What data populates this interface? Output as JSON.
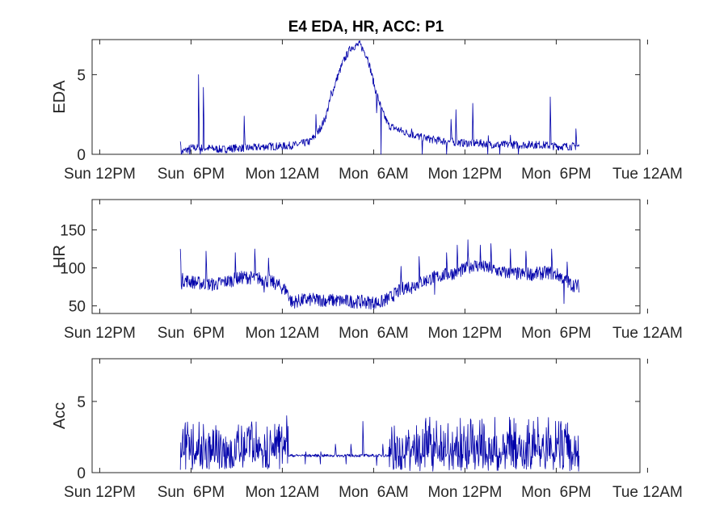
{
  "chart_data": {
    "type": "line",
    "title": "E4 EDA, HR, ACC: P1",
    "line_color": "#0000aa",
    "x_ticks": [
      "Sun 12PM",
      "Sun  6PM",
      "Mon 12AM",
      "Mon  6AM",
      "Mon 12PM",
      "Mon  6PM",
      "Tue 12AM"
    ],
    "x_tick_hours": [
      0,
      6,
      12,
      18,
      24,
      30,
      36
    ],
    "x_unit": "hours since Sun 12PM",
    "xlim": [
      -0.5,
      35.5
    ],
    "panels": [
      {
        "ylabel": "EDA",
        "ylim": [
          0,
          7.2
        ],
        "yticks": [
          0,
          5
        ],
        "ytick_labels": [
          "0",
          "5"
        ],
        "baseline": [
          [
            5.3,
            0.1
          ],
          [
            6,
            0.4
          ],
          [
            7,
            0.4
          ],
          [
            8,
            0.3
          ],
          [
            9,
            0.4
          ],
          [
            10,
            0.4
          ],
          [
            11,
            0.5
          ],
          [
            12,
            0.5
          ],
          [
            13,
            0.6
          ],
          [
            13.8,
            0.8
          ],
          [
            14.3,
            1.3
          ],
          [
            14.8,
            2.2
          ],
          [
            15.2,
            3.6
          ],
          [
            15.6,
            4.8
          ],
          [
            16.0,
            5.8
          ],
          [
            16.5,
            6.7
          ],
          [
            17.1,
            6.9
          ],
          [
            17.6,
            6.1
          ],
          [
            18.1,
            4.1
          ],
          [
            18.6,
            2.6
          ],
          [
            19,
            1.8
          ],
          [
            20,
            1.4
          ],
          [
            21,
            1.1
          ],
          [
            22,
            0.9
          ],
          [
            23,
            0.8
          ],
          [
            24,
            0.7
          ],
          [
            25,
            0.7
          ],
          [
            26,
            0.6
          ],
          [
            27,
            0.6
          ],
          [
            28,
            0.6
          ],
          [
            29,
            0.6
          ],
          [
            30,
            0.5
          ],
          [
            31,
            0.5
          ],
          [
            31.5,
            0.5
          ]
        ],
        "noise": 0.25,
        "spikes": [
          [
            5.3,
            0.8
          ],
          [
            6.5,
            5.0
          ],
          [
            6.8,
            4.2
          ],
          [
            8.4,
            0.4
          ],
          [
            9.5,
            2.4
          ],
          [
            14.2,
            2.5
          ],
          [
            15.2,
            4.0
          ],
          [
            18.2,
            2.6
          ],
          [
            20.5,
            1.6
          ],
          [
            23.1,
            2.2
          ],
          [
            23.4,
            2.8
          ],
          [
            24.5,
            3.2
          ],
          [
            25.5,
            1.6
          ],
          [
            27,
            1.2
          ],
          [
            28.4,
            0.8
          ],
          [
            29.6,
            3.6
          ],
          [
            31.3,
            1.6
          ]
        ],
        "dips": [
          [
            5.9,
            0.0
          ],
          [
            6.6,
            0.0
          ],
          [
            18.5,
            0.0
          ],
          [
            21.2,
            0.0
          ],
          [
            22.8,
            0.0
          ],
          [
            25.5,
            0.0
          ],
          [
            26.3,
            0.0
          ],
          [
            27.5,
            0.0
          ]
        ],
        "zero": false
      },
      {
        "ylabel": "HR",
        "ylim": [
          40,
          190
        ],
        "yticks": [
          50,
          100,
          150
        ],
        "ytick_labels": [
          "50",
          "100",
          "150"
        ],
        "baseline": [
          [
            5.3,
            85
          ],
          [
            6.5,
            80
          ],
          [
            7.5,
            78
          ],
          [
            8.5,
            83
          ],
          [
            9.5,
            88
          ],
          [
            10.5,
            86
          ],
          [
            11.5,
            80
          ],
          [
            12.3,
            70
          ],
          [
            12.6,
            55
          ],
          [
            13.5,
            58
          ],
          [
            14.5,
            58
          ],
          [
            15.5,
            57
          ],
          [
            16.5,
            56
          ],
          [
            17.5,
            55
          ],
          [
            18.4,
            54
          ],
          [
            19,
            60
          ],
          [
            20,
            74
          ],
          [
            21,
            80
          ],
          [
            22,
            88
          ],
          [
            23,
            92
          ],
          [
            24,
            98
          ],
          [
            24.5,
            104
          ],
          [
            25.5,
            100
          ],
          [
            26.5,
            94
          ],
          [
            27.5,
            92
          ],
          [
            28.5,
            92
          ],
          [
            29.5,
            94
          ],
          [
            30.2,
            90
          ],
          [
            31,
            78
          ],
          [
            31.5,
            76
          ]
        ],
        "noise": 9,
        "spikes": [
          [
            5.3,
            125
          ],
          [
            7,
            122
          ],
          [
            8.9,
            120
          ],
          [
            10.2,
            125
          ],
          [
            11.1,
            113
          ],
          [
            19.8,
            102
          ],
          [
            21,
            115
          ],
          [
            22.8,
            120
          ],
          [
            23.5,
            130
          ],
          [
            24.2,
            137
          ],
          [
            25,
            130
          ],
          [
            25.7,
            132
          ],
          [
            27,
            125
          ],
          [
            28,
            122
          ],
          [
            29.7,
            125
          ],
          [
            30.7,
            108
          ]
        ],
        "dips": [
          [
            5.4,
            72
          ],
          [
            10.8,
            68
          ],
          [
            12.7,
            50
          ],
          [
            14.8,
            50
          ],
          [
            18,
            52
          ],
          [
            18.6,
            52
          ],
          [
            20.5,
            66
          ],
          [
            22,
            65
          ],
          [
            30.5,
            53
          ]
        ],
        "zero": false
      },
      {
        "ylabel": "Acc",
        "ylim": [
          0,
          8
        ],
        "yticks": [
          0,
          5
        ],
        "ytick_labels": [
          "0",
          "5"
        ],
        "baseline": [
          [
            5.3,
            1.2
          ],
          [
            6,
            1.2
          ],
          [
            12.4,
            1.2
          ],
          [
            19,
            1.2
          ],
          [
            31.5,
            1.2
          ]
        ],
        "noise": 0.1,
        "bursts": [
          [
            5.3,
            12.4,
            0.2,
            3.6
          ],
          [
            19.0,
            31.5,
            0.1,
            3.9
          ]
        ],
        "spikes": [
          [
            5.3,
            4.0
          ],
          [
            6.8,
            3.4
          ],
          [
            9.9,
            3.0
          ],
          [
            12.3,
            4.0
          ],
          [
            13.5,
            1.8
          ],
          [
            14.5,
            1.8
          ],
          [
            15.5,
            2.0
          ],
          [
            16.5,
            2.0
          ],
          [
            17.3,
            3.6
          ],
          [
            18.6,
            2.0
          ],
          [
            19.2,
            3.2
          ],
          [
            24.5,
            3.4
          ],
          [
            27,
            3.7
          ],
          [
            28.8,
            3.9
          ],
          [
            30.3,
            3.6
          ]
        ],
        "dips": [
          [
            5.3,
            0.2
          ],
          [
            13.5,
            0.6
          ],
          [
            14.5,
            0.6
          ],
          [
            16.2,
            0.6
          ],
          [
            18.2,
            0.5
          ],
          [
            31.0,
            0.2
          ]
        ],
        "zero": false
      }
    ]
  }
}
